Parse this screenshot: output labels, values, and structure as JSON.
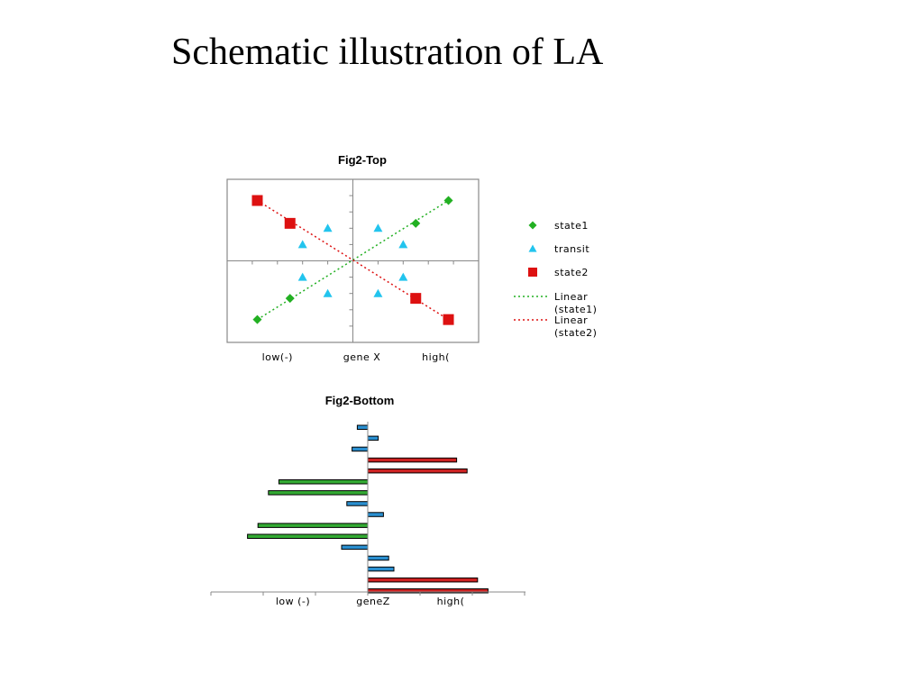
{
  "slide": {
    "title": "Schematic illustration of LA"
  },
  "colors": {
    "state1": "#22b022",
    "transit": "#22c4ee",
    "state2": "#dd1111",
    "bar_blue": "#2a8fd0",
    "bar_red": "#cc2222",
    "bar_green": "#33aa33"
  },
  "chart_data": [
    {
      "type": "scatter",
      "title": "Fig2-Top",
      "xlim": [
        -5,
        5
      ],
      "ylim": [
        -5,
        5
      ],
      "x_tick_labels": [
        "low(-)",
        "gene X",
        "high("
      ],
      "series": [
        {
          "name": "state1",
          "marker": "diamond",
          "color": "#22b022",
          "points": [
            [
              -3.8,
              -3.6
            ],
            [
              -2.5,
              -2.3
            ],
            [
              2.5,
              2.3
            ],
            [
              3.8,
              3.7
            ]
          ]
        },
        {
          "name": "transit",
          "marker": "triangle",
          "color": "#22c4ee",
          "points": [
            [
              -1.0,
              2.0
            ],
            [
              -2.0,
              1.0
            ],
            [
              1.0,
              2.0
            ],
            [
              2.0,
              1.0
            ],
            [
              -2.0,
              -1.0
            ],
            [
              -1.0,
              -2.0
            ],
            [
              1.0,
              -2.0
            ],
            [
              2.0,
              -1.0
            ]
          ]
        },
        {
          "name": "state2",
          "marker": "square",
          "color": "#dd1111",
          "points": [
            [
              -3.8,
              3.7
            ],
            [
              -2.5,
              2.3
            ],
            [
              2.5,
              -2.3
            ],
            [
              3.8,
              -3.6
            ]
          ]
        }
      ],
      "trendlines": [
        {
          "name": "Linear (state1)",
          "label_lines": [
            "Linear",
            "(state1)"
          ],
          "color": "#22b022",
          "from": [
            -3.8,
            -3.6
          ],
          "to": [
            3.8,
            3.7
          ]
        },
        {
          "name": "Linear (state2)",
          "label_lines": [
            "Linear",
            "(state2)"
          ],
          "color": "#dd1111",
          "from": [
            -3.8,
            3.7
          ],
          "to": [
            3.8,
            -3.6
          ]
        }
      ],
      "legend": {
        "placement": "right"
      },
      "grid": false
    },
    {
      "type": "bar",
      "orientation": "horizontal",
      "title": "Fig2-Bottom",
      "xlim": [
        -3,
        3
      ],
      "x_tick_labels": [
        "low (-)",
        "geneZ",
        "high("
      ],
      "bars": [
        {
          "value": -0.2,
          "group": "transit"
        },
        {
          "value": 0.2,
          "group": "transit"
        },
        {
          "value": -0.3,
          "group": "transit"
        },
        {
          "value": 1.7,
          "group": "state2"
        },
        {
          "value": 1.9,
          "group": "state2"
        },
        {
          "value": -1.7,
          "group": "state1"
        },
        {
          "value": -1.9,
          "group": "state1"
        },
        {
          "value": -0.4,
          "group": "transit"
        },
        {
          "value": 0.3,
          "group": "transit"
        },
        {
          "value": -2.1,
          "group": "state1"
        },
        {
          "value": -2.3,
          "group": "state1"
        },
        {
          "value": -0.5,
          "group": "transit"
        },
        {
          "value": 0.4,
          "group": "transit"
        },
        {
          "value": 0.5,
          "group": "transit"
        },
        {
          "value": 2.1,
          "group": "state2"
        },
        {
          "value": 2.3,
          "group": "state2"
        }
      ]
    }
  ]
}
